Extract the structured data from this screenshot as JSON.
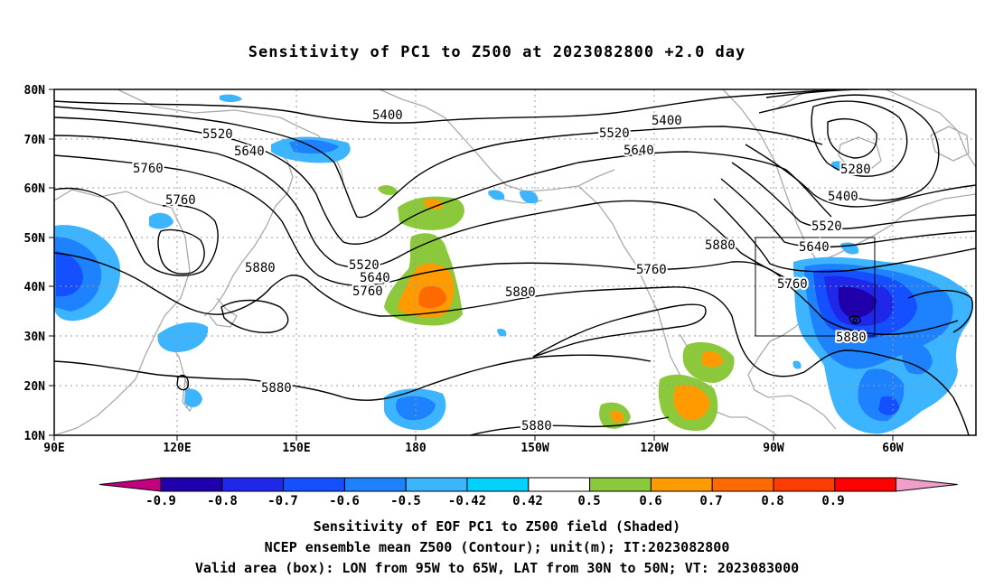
{
  "title": "Sensitivity of PC1 to Z500 at 2023082800 +2.0 day",
  "map": {
    "lat_labels": [
      "80N",
      "70N",
      "60N",
      "50N",
      "40N",
      "30N",
      "20N",
      "10N"
    ],
    "lon_labels": [
      "90E",
      "120E",
      "150E",
      "180",
      "150W",
      "120W",
      "90W",
      "60W"
    ],
    "gridlines": "dotted",
    "box": {
      "lon": [
        "95W",
        "65W"
      ],
      "lat": [
        "30N",
        "50N"
      ]
    }
  },
  "contours": {
    "labels": [
      "5400",
      "5520",
      "5640",
      "5760",
      "5760",
      "5880",
      "5520",
      "5640",
      "5760",
      "5880",
      "5880",
      "5400",
      "5520",
      "5640",
      "5760",
      "5880",
      "5280",
      "5400",
      "5520",
      "5640",
      "5760",
      "5880",
      "5880"
    ]
  },
  "colorbar": {
    "labels": [
      "-0.9",
      "-0.8",
      "-0.7",
      "-0.6",
      "-0.5",
      "-0.42",
      "0.42",
      "0.5",
      "0.6",
      "0.7",
      "0.8",
      "0.9"
    ],
    "colors": [
      "#c0007f",
      "#1f00aa",
      "#1f28e8",
      "#1450ff",
      "#1e82ff",
      "#3cb4ff",
      "#00d2ff",
      "#ffffff",
      "#8cc83c",
      "#ff9a00",
      "#ff6a00",
      "#ff3c00",
      "#ff0000",
      "#f0a0c8"
    ]
  },
  "caption": {
    "line1": "Sensitivity of EOF PC1 to Z500 field (Shaded)",
    "line2": "NCEP ensemble mean Z500 (Contour); unit(m); IT:2023082800",
    "line3": "Valid area (box): LON from 95W to 65W, LAT from 30N to 50N; VT: 2023083000"
  }
}
